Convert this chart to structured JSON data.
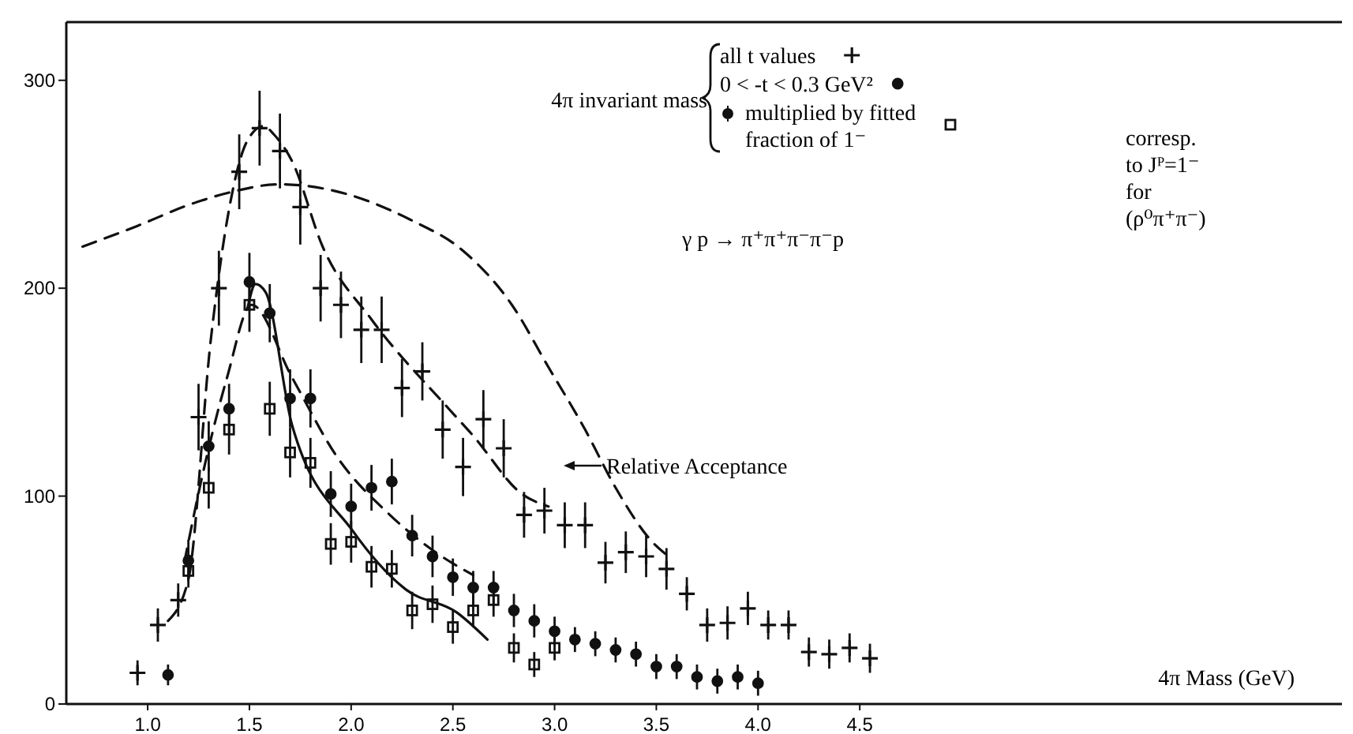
{
  "chart_data": {
    "type": "scatter",
    "subtitle": "γ p → π⁺π⁺π⁻π⁻p",
    "xlabel": "4π Mass (GeV)",
    "legend_title": "4π invariant mass",
    "legend": "top right",
    "xlim": [
      0.6,
      6.87
    ],
    "ylim": [
      0,
      328
    ],
    "xticks": [
      {
        "value": 1,
        "label": "1.0"
      },
      {
        "value": 1.5,
        "label": "1.5"
      },
      {
        "value": 2,
        "label": "2.0"
      },
      {
        "value": 2.5,
        "label": "2.5"
      },
      {
        "value": 3,
        "label": "3.0"
      },
      {
        "value": 3.5,
        "label": "3.5"
      },
      {
        "value": 4,
        "label": "4.0"
      },
      {
        "value": 4.5,
        "label": "4.5"
      }
    ],
    "yticks": [
      0,
      100,
      200,
      300
    ],
    "annotations": [
      "corresp. to Jᴾ=1⁻ for (ρ⁰π⁺π⁻)",
      "Relative Acceptance"
    ],
    "series": [
      {
        "name": "all t values",
        "marker": "cross",
        "color": "#111111",
        "x": [
          0.95,
          1.05,
          1.15,
          1.25,
          1.35,
          1.45,
          1.55,
          1.65,
          1.75,
          1.85,
          1.95,
          2.05,
          2.15,
          2.25,
          2.35,
          2.45,
          2.55,
          2.65,
          2.75,
          2.85,
          2.95,
          3.05,
          3.15,
          3.25,
          3.35,
          3.45,
          3.55,
          3.65,
          3.75,
          3.85,
          3.95,
          4.05,
          4.15,
          4.25,
          4.35,
          4.45,
          4.55
        ],
        "values": [
          15,
          38,
          50,
          138,
          200,
          256,
          277,
          266,
          239,
          200,
          192,
          180,
          180,
          152,
          160,
          132,
          114,
          137,
          123,
          91,
          93,
          86,
          86,
          68,
          73,
          71,
          65,
          53,
          38,
          39,
          46,
          38,
          38,
          25,
          24,
          27,
          22
        ],
        "errors": [
          6,
          8,
          8,
          16,
          18,
          18,
          18,
          18,
          18,
          16,
          16,
          16,
          16,
          14,
          14,
          14,
          14,
          14,
          14,
          11,
          11,
          11,
          11,
          10,
          10,
          10,
          10,
          8,
          8,
          8,
          8,
          7,
          7,
          7,
          7,
          7,
          7
        ]
      },
      {
        "name": "0 < -t < 0.3 GeV²",
        "marker": "circle",
        "color": "#111111",
        "x": [
          1.1,
          1.2,
          1.3,
          1.4,
          1.5,
          1.6,
          1.7,
          1.8,
          1.9,
          2.0,
          2.1,
          2.2,
          2.3,
          2.4,
          2.5,
          2.6,
          2.7,
          2.8,
          2.9,
          3.0,
          3.1,
          3.2,
          3.3,
          3.4,
          3.5,
          3.6,
          3.7,
          3.8,
          3.9,
          4.0
        ],
        "values": [
          14,
          69,
          124,
          142,
          203,
          188,
          147,
          147,
          101,
          95,
          104,
          107,
          81,
          71,
          61,
          56,
          56,
          45,
          40,
          35,
          31,
          29,
          26,
          24,
          18,
          18,
          13,
          11,
          13,
          10
        ],
        "errors": [
          5,
          10,
          12,
          12,
          14,
          14,
          14,
          14,
          11,
          11,
          11,
          11,
          10,
          10,
          9,
          8,
          8,
          8,
          8,
          7,
          6,
          6,
          6,
          6,
          6,
          6,
          6,
          6,
          6,
          6
        ]
      },
      {
        "name": "multiplied by fitted fraction of 1⁻",
        "marker": "square",
        "color": "#111111",
        "x": [
          1.2,
          1.3,
          1.4,
          1.5,
          1.6,
          1.7,
          1.8,
          1.9,
          2.0,
          2.1,
          2.2,
          2.3,
          2.4,
          2.5,
          2.6,
          2.7,
          2.8,
          2.9,
          3.0
        ],
        "values": [
          64,
          104,
          132,
          192,
          142,
          121,
          116,
          77,
          78,
          66,
          65,
          45,
          48,
          37,
          45,
          50,
          27,
          19,
          27
        ],
        "errors": [
          8,
          10,
          12,
          13,
          13,
          12,
          12,
          10,
          10,
          10,
          9,
          9,
          9,
          8,
          8,
          8,
          7,
          6,
          6
        ]
      },
      {
        "type": "line",
        "line_style": "dashed",
        "color": "#111111",
        "x": [
          0.68,
          0.95,
          1.2,
          1.4,
          1.65,
          1.91,
          2.29,
          2.55,
          2.79,
          2.97,
          3.15,
          3.3,
          3.48,
          3.56
        ],
        "values": [
          220,
          230,
          240,
          246,
          250,
          247,
          233,
          218,
          192,
          162,
          132,
          104,
          78,
          71
        ]
      },
      {
        "type": "line",
        "line_style": "dashed",
        "color": "#111111",
        "x": [
          1.1,
          1.2,
          1.31,
          1.4,
          1.49,
          1.57,
          1.62,
          1.71,
          1.86,
          2.1,
          2.48,
          2.6,
          2.84,
          2.97
        ],
        "values": [
          40,
          60,
          175,
          238,
          271,
          278,
          274,
          261,
          220,
          185,
          142,
          129,
          101,
          95
        ]
      },
      {
        "type": "line",
        "line_style": "dashed",
        "color": "#111111",
        "x": [
          1.18,
          1.26,
          1.39,
          1.51,
          1.71,
          1.93,
          2.19,
          2.43,
          2.6
        ],
        "values": [
          68,
          106,
          157,
          192,
          157,
          119,
          91,
          72,
          62
        ]
      },
      {
        "type": "line",
        "line_style": "solid",
        "color": "#111111",
        "x": [
          1.49,
          1.53,
          1.58,
          1.71,
          2.01,
          2.27,
          2.52,
          2.67
        ],
        "values": [
          190,
          202,
          198,
          134,
          83,
          55,
          44,
          31
        ]
      }
    ]
  }
}
